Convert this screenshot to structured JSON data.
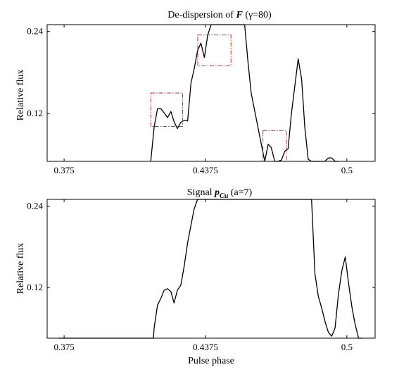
{
  "chart_data": [
    {
      "type": "line",
      "title": {
        "prefix": "De-dispersion of ",
        "symbol": "F",
        "suffix": " (γ=80)"
      },
      "xlabel": "",
      "ylabel": "Relative flux",
      "xlim": [
        0.3675,
        0.5125
      ],
      "ylim": [
        0.05,
        0.25
      ],
      "xticks": [
        0.375,
        0.4375,
        0.5
      ],
      "xtick_labels": [
        "0.375",
        "0.4375",
        "0.5"
      ],
      "yticks": [
        0.12,
        0.24
      ],
      "ytick_labels": [
        "0.12",
        "0.24"
      ],
      "grid": false,
      "x": [
        0.4133,
        0.4148,
        0.4163,
        0.4178,
        0.4192,
        0.4207,
        0.4222,
        0.4236,
        0.4251,
        0.4266,
        0.4281,
        0.4296,
        0.4311,
        0.4325,
        0.434,
        0.4355,
        0.437,
        0.4385,
        0.44,
        0.4414,
        0.4429,
        0.4444,
        0.4459,
        0.4474,
        0.4489,
        0.4503,
        0.4518,
        0.4533,
        0.4548,
        0.4563,
        0.4577,
        0.4592,
        0.4607,
        0.4622,
        0.4637,
        0.4652,
        0.4666,
        0.4681,
        0.4696,
        0.4711,
        0.4726,
        0.474,
        0.4755,
        0.477,
        0.4785,
        0.48,
        0.4814,
        0.4829,
        0.4844,
        0.4859,
        0.4874,
        0.4889,
        0.4903,
        0.4918,
        0.4933,
        0.4948,
        0.4963
      ],
      "y": [
        0.05,
        0.1,
        0.127,
        0.127,
        0.121,
        0.114,
        0.123,
        0.108,
        0.098,
        0.107,
        0.11,
        0.109,
        0.165,
        0.185,
        0.212,
        0.223,
        0.202,
        0.235,
        0.25,
        0.25,
        0.25,
        0.25,
        0.25,
        0.25,
        0.25,
        0.25,
        0.25,
        0.25,
        0.25,
        0.195,
        0.15,
        0.125,
        0.1,
        0.075,
        0.05,
        0.075,
        0.07,
        0.05,
        0.05,
        0.052,
        0.065,
        0.068,
        0.12,
        0.16,
        0.2,
        0.17,
        0.1,
        0.053,
        0.05,
        0.05,
        0.05,
        0.05,
        0.05,
        0.055,
        0.055,
        0.05,
        0.05
      ],
      "highlights": [
        {
          "x0": 0.4133,
          "x1": 0.4274,
          "y0": 0.101,
          "y1": 0.15
        },
        {
          "x0": 0.4341,
          "x1": 0.4488,
          "y0": 0.19,
          "y1": 0.235
        },
        {
          "x0": 0.4629,
          "x1": 0.4733,
          "y0": 0.05,
          "y1": 0.095
        }
      ],
      "highlight_color": "#d62728"
    },
    {
      "type": "line",
      "title": {
        "prefix": "Signal ",
        "symbol": "p",
        "subscript": "Cu",
        "suffix": " (a=7)"
      },
      "xlabel": "Pulse phase",
      "ylabel": "Relative flux",
      "xlim": [
        0.3675,
        0.5125
      ],
      "ylim": [
        0.045,
        0.25
      ],
      "xticks": [
        0.375,
        0.4375,
        0.5
      ],
      "xtick_labels": [
        "0.375",
        "0.4375",
        "0.5"
      ],
      "yticks": [
        0.12,
        0.24
      ],
      "ytick_labels": [
        "0.12",
        "0.24"
      ],
      "grid": false,
      "x": [
        0.3725,
        0.3785,
        0.3845,
        0.3905,
        0.3965,
        0.4025,
        0.4085,
        0.4145,
        0.4148,
        0.4163,
        0.4178,
        0.4192,
        0.4207,
        0.4222,
        0.4236,
        0.4251,
        0.4266,
        0.4281,
        0.4296,
        0.4311,
        0.4325,
        0.434,
        0.4355,
        0.437,
        0.4385,
        0.44,
        0.4414,
        0.4429,
        0.4444,
        0.4459,
        0.4474,
        0.4489,
        0.4503,
        0.4518,
        0.4533,
        0.4548,
        0.4563,
        0.4577,
        0.4592,
        0.4607,
        0.4622,
        0.4637,
        0.4652,
        0.4666,
        0.4681,
        0.4696,
        0.4711,
        0.4726,
        0.474,
        0.4755,
        0.477,
        0.4785,
        0.48,
        0.4814,
        0.4829,
        0.4844,
        0.4859,
        0.4874,
        0.4889,
        0.4903,
        0.4918,
        0.4933,
        0.4948,
        0.4963,
        0.4978,
        0.4993,
        0.5008,
        0.5023,
        0.5037,
        0.5052,
        0.5067
      ],
      "y": [
        0.045,
        0.045,
        0.045,
        0.045,
        0.045,
        0.045,
        0.045,
        0.045,
        0.06,
        0.094,
        0.104,
        0.116,
        0.118,
        0.114,
        0.097,
        0.116,
        0.123,
        0.152,
        0.186,
        0.212,
        0.236,
        0.25,
        0.25,
        0.25,
        0.25,
        0.25,
        0.25,
        0.25,
        0.25,
        0.25,
        0.25,
        0.25,
        0.25,
        0.25,
        0.25,
        0.25,
        0.25,
        0.25,
        0.25,
        0.25,
        0.25,
        0.25,
        0.25,
        0.25,
        0.25,
        0.25,
        0.25,
        0.25,
        0.25,
        0.25,
        0.25,
        0.25,
        0.25,
        0.25,
        0.25,
        0.25,
        0.14,
        0.107,
        0.089,
        0.07,
        0.054,
        0.048,
        0.06,
        0.11,
        0.145,
        0.165,
        0.125,
        0.09,
        0.065,
        0.045,
        0.045
      ],
      "highlights": []
    }
  ]
}
